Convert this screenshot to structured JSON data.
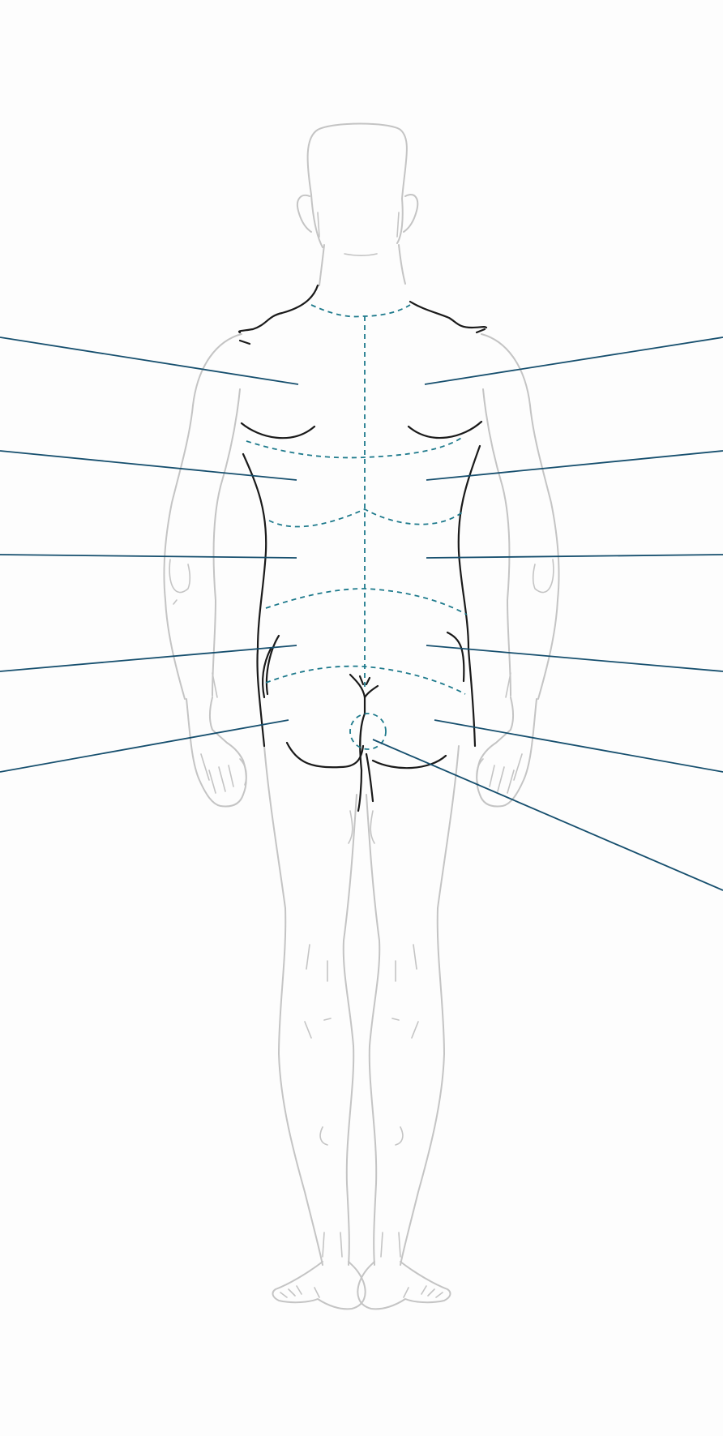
{
  "diagram": {
    "view": "posterior",
    "colors": {
      "background": "#fdfdfd",
      "body_outline": "#c4c4c4",
      "torso_contour": "#1a1a1a",
      "region_boundary": "#1e7a8c",
      "leader_line": "#164f6e"
    },
    "labels": []
  }
}
